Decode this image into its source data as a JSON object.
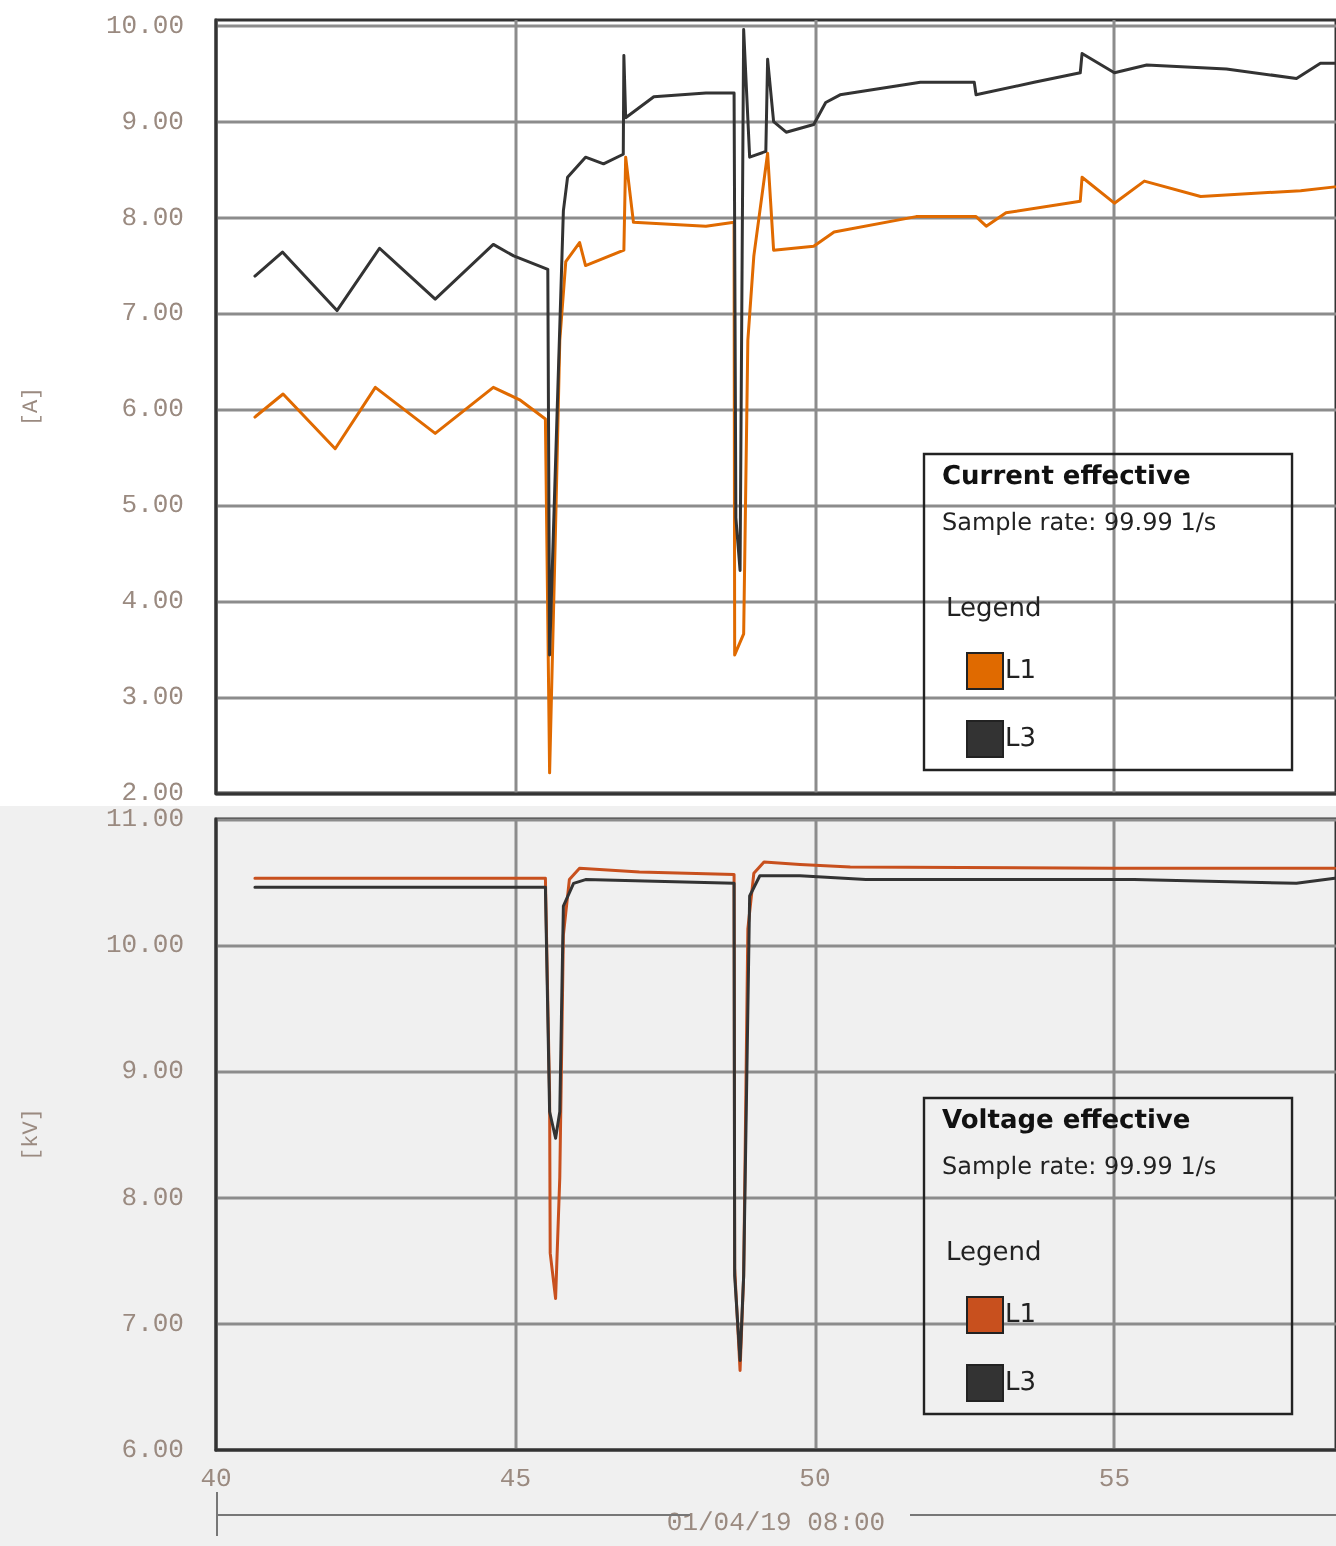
{
  "chart_data": [
    {
      "type": "line",
      "title": "Current effective",
      "subtitle": "Sample rate: 99.99 1/s",
      "legend_title": "Legend",
      "ylabel": "[A]",
      "xlim": [
        40,
        58.7
      ],
      "xticks": [
        40,
        45,
        50,
        55
      ],
      "ylim": [
        2,
        10.06
      ],
      "yticks": [
        {
          "value": 2,
          "label": "2.00"
        },
        {
          "value": 3,
          "label": "3.00"
        },
        {
          "value": 4,
          "label": "4.00"
        },
        {
          "value": 5,
          "label": "5.00"
        },
        {
          "value": 6,
          "label": "6.00"
        },
        {
          "value": 7,
          "label": "7.00"
        },
        {
          "value": 8,
          "label": "8.00"
        },
        {
          "value": 9,
          "label": "9.00"
        },
        {
          "value": 10,
          "label": "10.00"
        }
      ],
      "tick_labels": "y",
      "grid": true,
      "legend": "bottom right",
      "marker": "none",
      "line_style": "solid",
      "series": [
        {
          "name": "L1",
          "color": "#e06a00",
          "x": [
            40.65,
            41.12,
            41.99,
            42.66,
            43.66,
            44.63,
            45.07,
            45.5,
            45.57,
            45.67,
            45.74,
            45.84,
            46.07,
            46.17,
            46.81,
            46.84,
            46.97,
            48.18,
            48.65,
            48.66,
            48.81,
            48.88,
            48.98,
            49.21,
            49.31,
            49.98,
            50.32,
            51.69,
            52.69,
            52.86,
            53.19,
            54.43,
            54.46,
            55.0,
            55.5,
            56.44,
            58.11,
            58.68
          ],
          "values": [
            5.92,
            6.16,
            5.59,
            6.23,
            5.75,
            6.23,
            6.1,
            5.9,
            2.21,
            4.79,
            6.72,
            7.54,
            7.74,
            7.5,
            7.66,
            8.63,
            7.95,
            7.91,
            7.95,
            3.44,
            3.66,
            6.72,
            7.6,
            8.67,
            7.66,
            7.7,
            7.85,
            8.01,
            8.01,
            7.91,
            8.05,
            8.17,
            8.42,
            8.15,
            8.38,
            8.22,
            8.28,
            8.32
          ]
        },
        {
          "name": "L3",
          "color": "#333333",
          "x": [
            40.65,
            41.11,
            42.02,
            42.73,
            43.66,
            44.63,
            44.97,
            45.54,
            45.57,
            45.8,
            45.87,
            46.17,
            46.47,
            46.8,
            46.81,
            46.84,
            47.31,
            48.18,
            48.65,
            48.68,
            48.75,
            48.81,
            48.91,
            49.18,
            49.21,
            49.31,
            49.52,
            49.98,
            50.18,
            50.42,
            51.76,
            52.66,
            52.69,
            53.66,
            54.43,
            54.46,
            55.0,
            55.54,
            56.87,
            58.04,
            58.44,
            58.68
          ],
          "values": [
            7.39,
            7.64,
            7.03,
            7.68,
            7.15,
            7.72,
            7.6,
            7.46,
            3.44,
            8.07,
            8.42,
            8.63,
            8.56,
            8.66,
            9.69,
            9.04,
            9.26,
            9.3,
            9.3,
            4.87,
            4.32,
            9.96,
            8.63,
            8.69,
            9.65,
            9.0,
            8.89,
            8.97,
            9.2,
            9.28,
            9.41,
            9.41,
            9.28,
            9.41,
            9.51,
            9.71,
            9.51,
            9.59,
            9.55,
            9.45,
            9.61,
            9.61
          ]
        }
      ]
    },
    {
      "type": "line",
      "title": "Voltage effective",
      "subtitle": "Sample rate: 99.99 1/s",
      "legend_title": "Legend",
      "ylabel": "[kV]",
      "xlabel": "01/04/19 08:00",
      "xlim": [
        40,
        58.7
      ],
      "xticks": [
        40,
        45,
        50,
        55
      ],
      "ylim": [
        6,
        11
      ],
      "yticks": [
        {
          "value": 6,
          "label": "6.00"
        },
        {
          "value": 7,
          "label": "7.00"
        },
        {
          "value": 8,
          "label": "8.00"
        },
        {
          "value": 9,
          "label": "9.00"
        },
        {
          "value": 10,
          "label": "10.00"
        },
        {
          "value": 11,
          "label": "11.00"
        }
      ],
      "grid": true,
      "legend": "bottom right",
      "marker": "none",
      "line_style": "solid",
      "series": [
        {
          "name": "L1",
          "color": "#c8501e",
          "x": [
            40.65,
            45.5,
            45.57,
            45.58,
            45.67,
            45.74,
            45.8,
            45.9,
            46.07,
            47.07,
            48.65,
            48.66,
            48.75,
            48.81,
            48.88,
            48.98,
            49.15,
            49.75,
            50.59,
            55.0,
            58.68
          ],
          "values": [
            10.53,
            10.53,
            8.81,
            7.56,
            7.2,
            8.16,
            10.08,
            10.52,
            10.61,
            10.58,
            10.56,
            7.44,
            6.63,
            7.38,
            10.13,
            10.57,
            10.66,
            10.64,
            10.62,
            10.61,
            10.61
          ]
        },
        {
          "name": "L3",
          "color": "#333333",
          "x": [
            40.65,
            45.5,
            45.57,
            45.67,
            45.74,
            45.8,
            45.97,
            46.17,
            48.65,
            48.66,
            48.75,
            48.81,
            48.91,
            49.08,
            49.75,
            50.85,
            55.33,
            58.04,
            58.68
          ],
          "values": [
            10.46,
            10.46,
            8.68,
            8.47,
            8.68,
            10.31,
            10.49,
            10.52,
            10.49,
            7.38,
            6.71,
            7.38,
            10.39,
            10.55,
            10.55,
            10.52,
            10.52,
            10.49,
            10.53
          ]
        }
      ]
    }
  ]
}
